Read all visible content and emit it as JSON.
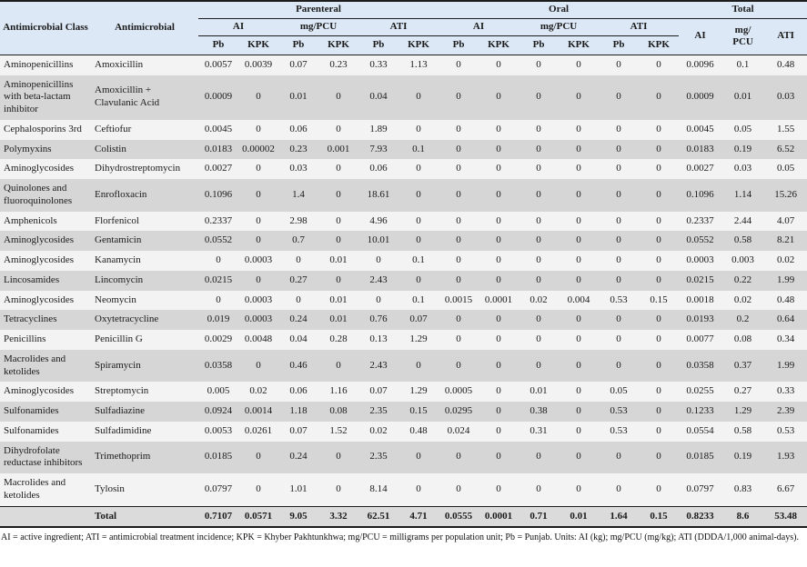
{
  "colors": {
    "header_bg": "#dce8f5",
    "stripe_light": "#f3f3f3",
    "stripe_dark": "#d6d6d6",
    "total_bg": "#dbdbdb",
    "border": "#1c1c1c"
  },
  "table": {
    "header": {
      "class_col": "Antimicrobial Class",
      "antimicrobial_col": "Antimicrobial",
      "groups": [
        {
          "label": "Parenteral",
          "sub": [
            "AI",
            "mg/PCU",
            "ATI"
          ]
        },
        {
          "label": "Oral",
          "sub": [
            "AI",
            "mg/PCU",
            "ATI"
          ]
        },
        {
          "label": "Total",
          "sub": [
            "AI",
            "mg/\nPCU",
            "ATI"
          ]
        }
      ],
      "region_cols": [
        "Pb",
        "KPK"
      ]
    },
    "rows": [
      {
        "class": "Aminopenicillins",
        "name": "Amoxicillin",
        "values": [
          "0.0057",
          "0.0039",
          "0.07",
          "0.23",
          "0.33",
          "1.13",
          "0",
          "0",
          "0",
          "0",
          "0",
          "0",
          "0.0096",
          "0.1",
          "0.48"
        ]
      },
      {
        "class": "Aminopenicillins with beta-lactam inhibitor",
        "name": "Amoxicillin + Clavulanic Acid",
        "values": [
          "0.0009",
          "0",
          "0.01",
          "0",
          "0.04",
          "0",
          "0",
          "0",
          "0",
          "0",
          "0",
          "0",
          "0.0009",
          "0.01",
          "0.03"
        ]
      },
      {
        "class": "Cephalosporins 3rd",
        "name": "Ceftiofur",
        "values": [
          "0.0045",
          "0",
          "0.06",
          "0",
          "1.89",
          "0",
          "0",
          "0",
          "0",
          "0",
          "0",
          "0",
          "0.0045",
          "0.05",
          "1.55"
        ]
      },
      {
        "class": "Polymyxins",
        "name": "Colistin",
        "values": [
          "0.0183",
          "0.00002",
          "0.23",
          "0.001",
          "7.93",
          "0.1",
          "0",
          "0",
          "0",
          "0",
          "0",
          "0",
          "0.0183",
          "0.19",
          "6.52"
        ]
      },
      {
        "class": "Aminoglycosides",
        "name": "Dihydrostreptomycin",
        "values": [
          "0.0027",
          "0",
          "0.03",
          "0",
          "0.06",
          "0",
          "0",
          "0",
          "0",
          "0",
          "0",
          "0",
          "0.0027",
          "0.03",
          "0.05"
        ]
      },
      {
        "class": "Quinolones and fluoroquinolones",
        "name": "Enrofloxacin",
        "values": [
          "0.1096",
          "0",
          "1.4",
          "0",
          "18.61",
          "0",
          "0",
          "0",
          "0",
          "0",
          "0",
          "0",
          "0.1096",
          "1.14",
          "15.26"
        ]
      },
      {
        "class": "Amphenicols",
        "name": "Florfenicol",
        "values": [
          "0.2337",
          "0",
          "2.98",
          "0",
          "4.96",
          "0",
          "0",
          "0",
          "0",
          "0",
          "0",
          "0",
          "0.2337",
          "2.44",
          "4.07"
        ]
      },
      {
        "class": "Aminoglycosides",
        "name": "Gentamicin",
        "values": [
          "0.0552",
          "0",
          "0.7",
          "0",
          "10.01",
          "0",
          "0",
          "0",
          "0",
          "0",
          "0",
          "0",
          "0.0552",
          "0.58",
          "8.21"
        ]
      },
      {
        "class": "Aminoglycosides",
        "name": "Kanamycin",
        "values": [
          "0",
          "0.0003",
          "0",
          "0.01",
          "0",
          "0.1",
          "0",
          "0",
          "0",
          "0",
          "0",
          "0",
          "0.0003",
          "0.003",
          "0.02"
        ]
      },
      {
        "class": "Lincosamides",
        "name": "Lincomycin",
        "values": [
          "0.0215",
          "0",
          "0.27",
          "0",
          "2.43",
          "0",
          "0",
          "0",
          "0",
          "0",
          "0",
          "0",
          "0.0215",
          "0.22",
          "1.99"
        ]
      },
      {
        "class": "Aminoglycosides",
        "name": "Neomycin",
        "values": [
          "0",
          "0.0003",
          "0",
          "0.01",
          "0",
          "0.1",
          "0.0015",
          "0.0001",
          "0.02",
          "0.004",
          "0.53",
          "0.15",
          "0.0018",
          "0.02",
          "0.48"
        ]
      },
      {
        "class": "Tetracyclines",
        "name": "Oxytetracycline",
        "values": [
          "0.019",
          "0.0003",
          "0.24",
          "0.01",
          "0.76",
          "0.07",
          "0",
          "0",
          "0",
          "0",
          "0",
          "0",
          "0.0193",
          "0.2",
          "0.64"
        ]
      },
      {
        "class": "Penicillins",
        "name": "Penicillin G",
        "values": [
          "0.0029",
          "0.0048",
          "0.04",
          "0.28",
          "0.13",
          "1.29",
          "0",
          "0",
          "0",
          "0",
          "0",
          "0",
          "0.0077",
          "0.08",
          "0.34"
        ]
      },
      {
        "class": "Macrolides and ketolides",
        "name": "Spiramycin",
        "values": [
          "0.0358",
          "0",
          "0.46",
          "0",
          "2.43",
          "0",
          "0",
          "0",
          "0",
          "0",
          "0",
          "0",
          "0.0358",
          "0.37",
          "1.99"
        ]
      },
      {
        "class": "Aminoglycosides",
        "name": "Streptomycin",
        "values": [
          "0.005",
          "0.02",
          "0.06",
          "1.16",
          "0.07",
          "1.29",
          "0.0005",
          "0",
          "0.01",
          "0",
          "0.05",
          "0",
          "0.0255",
          "0.27",
          "0.33"
        ]
      },
      {
        "class": "Sulfonamides",
        "name": "Sulfadiazine",
        "values": [
          "0.0924",
          "0.0014",
          "1.18",
          "0.08",
          "2.35",
          "0.15",
          "0.0295",
          "0",
          "0.38",
          "0",
          "0.53",
          "0",
          "0.1233",
          "1.29",
          "2.39"
        ]
      },
      {
        "class": "Sulfonamides",
        "name": "Sulfadimidine",
        "values": [
          "0.0053",
          "0.0261",
          "0.07",
          "1.52",
          "0.02",
          "0.48",
          "0.024",
          "0",
          "0.31",
          "0",
          "0.53",
          "0",
          "0.0554",
          "0.58",
          "0.53"
        ]
      },
      {
        "class": "Dihydrofolate reductase inhibitors",
        "name": "Trimethoprim",
        "values": [
          "0.0185",
          "0",
          "0.24",
          "0",
          "2.35",
          "0",
          "0",
          "0",
          "0",
          "0",
          "0",
          "0",
          "0.0185",
          "0.19",
          "1.93"
        ]
      },
      {
        "class": "Macrolides and ketolides",
        "name": "Tylosin",
        "values": [
          "0.0797",
          "0",
          "1.01",
          "0",
          "8.14",
          "0",
          "0",
          "0",
          "0",
          "0",
          "0",
          "0",
          "0.0797",
          "0.83",
          "6.67"
        ]
      }
    ],
    "total_row": {
      "label": "Total",
      "values": [
        "0.7107",
        "0.0571",
        "9.05",
        "3.32",
        "62.51",
        "4.71",
        "0.0555",
        "0.0001",
        "0.71",
        "0.01",
        "1.64",
        "0.15",
        "0.8233",
        "8.6",
        "53.48"
      ]
    },
    "footnote": "AI = active ingredient; ATI = antimicrobial treatment incidence; KPK = Khyber Pakhtunkhwa; mg/PCU = milligrams per population unit; Pb = Punjab. Units: AI (kg); mg/PCU (mg/kg); ATI (DDDA/1,000 animal-days)."
  }
}
